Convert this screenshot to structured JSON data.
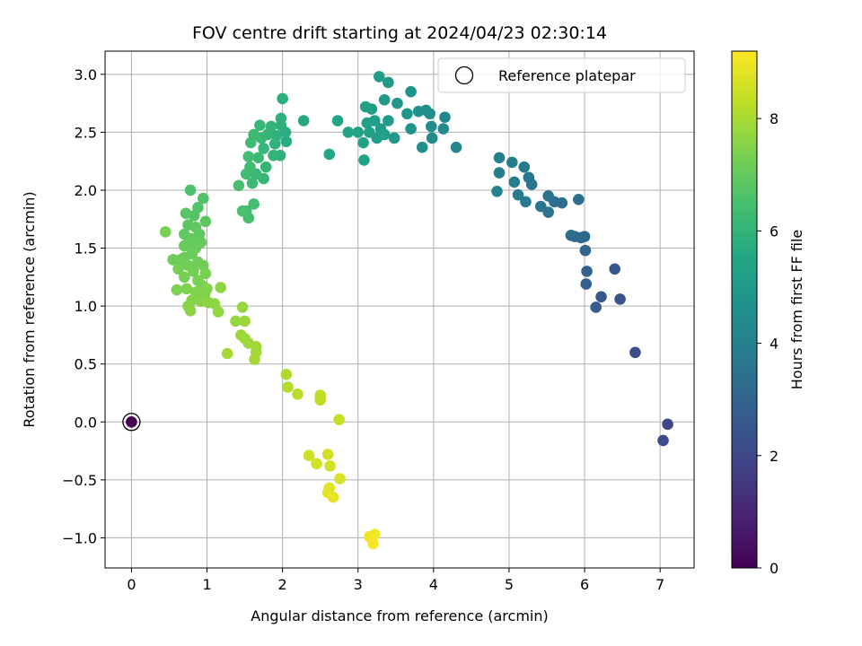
{
  "chart_data": {
    "type": "scatter",
    "title": "FOV centre drift starting at 2024/04/23 02:30:14",
    "xlabel": "Angular distance from reference (arcmin)",
    "ylabel": "Rotation from reference (arcmin)",
    "xlim": [
      -0.35,
      7.45
    ],
    "ylim": [
      -1.26,
      3.2
    ],
    "xticks": [
      0,
      1,
      2,
      3,
      4,
      5,
      6,
      7
    ],
    "yticks": [
      -1.0,
      -0.5,
      0.0,
      0.5,
      1.0,
      1.5,
      2.0,
      2.5,
      3.0
    ],
    "ytick_labels": [
      "−1.0",
      "−0.5",
      "0.0",
      "0.5",
      "1.0",
      "1.5",
      "2.0",
      "2.5",
      "3.0"
    ],
    "grid": true,
    "legend": {
      "placement": "top-right",
      "entries": [
        "Reference platepar"
      ]
    },
    "colorbar": {
      "label": "Hours from first FF file",
      "colormap": "viridis",
      "range": [
        0,
        9.2
      ],
      "ticks": [
        0,
        2,
        4,
        6,
        8
      ]
    },
    "reference_point": {
      "x": 0.0,
      "y": 0.0
    },
    "points": [
      [
        0.0,
        0.0,
        0.0
      ],
      [
        7.1,
        -0.02,
        2.0
      ],
      [
        7.04,
        -0.16,
        2.1
      ],
      [
        6.67,
        0.6,
        2.2
      ],
      [
        6.47,
        1.06,
        2.4
      ],
      [
        6.4,
        1.32,
        2.5
      ],
      [
        6.22,
        1.08,
        2.6
      ],
      [
        6.15,
        0.99,
        2.7
      ],
      [
        6.02,
        1.19,
        2.8
      ],
      [
        6.03,
        1.3,
        2.9
      ],
      [
        6.01,
        1.48,
        3.0
      ],
      [
        6.0,
        1.6,
        3.1
      ],
      [
        5.95,
        1.59,
        3.15
      ],
      [
        5.87,
        1.6,
        3.2
      ],
      [
        5.82,
        1.61,
        3.25
      ],
      [
        5.92,
        1.92,
        3.3
      ],
      [
        5.7,
        1.89,
        3.35
      ],
      [
        5.6,
        1.9,
        3.4
      ],
      [
        5.52,
        1.95,
        3.45
      ],
      [
        5.52,
        1.81,
        3.5
      ],
      [
        5.42,
        1.86,
        3.55
      ],
      [
        5.3,
        2.05,
        3.6
      ],
      [
        5.26,
        2.11,
        3.65
      ],
      [
        5.2,
        2.2,
        3.7
      ],
      [
        5.22,
        1.9,
        3.75
      ],
      [
        5.12,
        1.96,
        3.8
      ],
      [
        5.07,
        2.07,
        3.85
      ],
      [
        5.04,
        2.24,
        3.9
      ],
      [
        4.87,
        2.15,
        3.95
      ],
      [
        4.87,
        2.28,
        4.0
      ],
      [
        4.84,
        1.99,
        4.05
      ],
      [
        4.3,
        2.37,
        4.2
      ],
      [
        4.15,
        2.63,
        4.3
      ],
      [
        4.13,
        2.53,
        4.35
      ],
      [
        3.98,
        2.45,
        4.4
      ],
      [
        3.97,
        2.55,
        4.45
      ],
      [
        3.95,
        2.66,
        4.5
      ],
      [
        3.9,
        2.69,
        4.55
      ],
      [
        3.85,
        2.37,
        4.6
      ],
      [
        3.8,
        2.68,
        4.65
      ],
      [
        3.7,
        2.53,
        4.7
      ],
      [
        3.7,
        2.85,
        4.75
      ],
      [
        3.65,
        2.66,
        4.8
      ],
      [
        3.52,
        2.75,
        4.85
      ],
      [
        3.48,
        2.45,
        4.9
      ],
      [
        3.4,
        2.93,
        4.95
      ],
      [
        3.4,
        2.6,
        5.0
      ],
      [
        3.35,
        2.78,
        5.0
      ],
      [
        3.3,
        2.53,
        5.05
      ],
      [
        3.28,
        2.98,
        5.1
      ],
      [
        3.25,
        2.45,
        5.1
      ],
      [
        3.22,
        2.6,
        5.15
      ],
      [
        3.18,
        2.7,
        5.15
      ],
      [
        3.15,
        2.5,
        5.2
      ],
      [
        3.12,
        2.58,
        5.2
      ],
      [
        3.1,
        2.72,
        5.25
      ],
      [
        3.08,
        2.26,
        5.3
      ],
      [
        3.07,
        2.41,
        5.3
      ],
      [
        3.35,
        2.48,
        5.2
      ],
      [
        3.0,
        2.5,
        5.35
      ],
      [
        2.87,
        2.5,
        5.4
      ],
      [
        2.73,
        2.6,
        5.45
      ],
      [
        2.62,
        2.31,
        5.5
      ],
      [
        2.28,
        2.6,
        5.6
      ],
      [
        2.05,
        2.42,
        5.7
      ],
      [
        2.04,
        2.5,
        5.75
      ],
      [
        2.0,
        2.79,
        5.8
      ],
      [
        1.98,
        2.56,
        5.85
      ],
      [
        1.98,
        2.62,
        5.85
      ],
      [
        1.97,
        2.3,
        5.9
      ],
      [
        1.92,
        2.47,
        5.9
      ],
      [
        1.9,
        2.4,
        5.95
      ],
      [
        1.88,
        2.3,
        6.0
      ],
      [
        1.85,
        2.55,
        6.0
      ],
      [
        1.8,
        2.48,
        6.05
      ],
      [
        1.78,
        2.2,
        6.05
      ],
      [
        1.75,
        2.1,
        6.1
      ],
      [
        1.75,
        2.36,
        6.1
      ],
      [
        1.72,
        2.45,
        6.15
      ],
      [
        1.7,
        2.56,
        6.15
      ],
      [
        1.68,
        2.28,
        6.2
      ],
      [
        1.65,
        2.14,
        6.2
      ],
      [
        1.62,
        2.48,
        6.25
      ],
      [
        1.6,
        2.06,
        6.25
      ],
      [
        1.58,
        2.41,
        6.3
      ],
      [
        1.57,
        2.2,
        6.3
      ],
      [
        1.55,
        2.29,
        6.35
      ],
      [
        1.52,
        2.14,
        6.35
      ],
      [
        1.62,
        1.88,
        6.4
      ],
      [
        1.52,
        1.82,
        6.45
      ],
      [
        1.55,
        1.76,
        6.45
      ],
      [
        1.42,
        2.04,
        6.5
      ],
      [
        1.47,
        1.82,
        6.55
      ],
      [
        0.78,
        2.0,
        6.6
      ],
      [
        0.95,
        1.93,
        6.65
      ],
      [
        0.88,
        1.85,
        6.7
      ],
      [
        0.83,
        1.78,
        6.75
      ],
      [
        0.72,
        1.8,
        6.8
      ],
      [
        0.98,
        1.73,
        6.85
      ],
      [
        0.75,
        1.7,
        6.85
      ],
      [
        0.85,
        1.68,
        6.9
      ],
      [
        0.9,
        1.62,
        6.9
      ],
      [
        0.7,
        1.62,
        6.95
      ],
      [
        0.8,
        1.58,
        7.0
      ],
      [
        0.75,
        1.54,
        7.0
      ],
      [
        0.7,
        1.52,
        7.05
      ],
      [
        0.85,
        1.5,
        7.05
      ],
      [
        0.92,
        1.55,
        7.05
      ],
      [
        0.8,
        1.45,
        7.1
      ],
      [
        0.7,
        1.42,
        7.1
      ],
      [
        0.65,
        1.4,
        7.15
      ],
      [
        0.55,
        1.4,
        7.15
      ],
      [
        0.88,
        1.38,
        7.15
      ],
      [
        0.75,
        1.35,
        7.2
      ],
      [
        0.95,
        1.35,
        7.2
      ],
      [
        0.62,
        1.32,
        7.25
      ],
      [
        0.82,
        1.3,
        7.25
      ],
      [
        0.98,
        1.28,
        7.3
      ],
      [
        0.7,
        1.25,
        7.3
      ],
      [
        0.88,
        1.22,
        7.35
      ],
      [
        0.93,
        1.18,
        7.35
      ],
      [
        0.6,
        1.14,
        7.4
      ],
      [
        0.73,
        1.15,
        7.4
      ],
      [
        0.85,
        1.12,
        7.45
      ],
      [
        0.97,
        1.1,
        7.45
      ],
      [
        0.45,
        1.64,
        7.3
      ],
      [
        1.0,
        1.15,
        7.5
      ],
      [
        0.8,
        1.05,
        7.5
      ],
      [
        0.75,
        1.0,
        7.55
      ],
      [
        0.92,
        1.04,
        7.55
      ],
      [
        1.02,
        1.03,
        7.6
      ],
      [
        0.78,
        0.96,
        7.6
      ],
      [
        1.1,
        1.02,
        7.65
      ],
      [
        1.18,
        1.16,
        7.65
      ],
      [
        1.15,
        0.95,
        7.7
      ],
      [
        1.38,
        0.87,
        7.75
      ],
      [
        1.47,
        0.99,
        7.75
      ],
      [
        1.5,
        0.87,
        7.8
      ],
      [
        1.45,
        0.75,
        7.8
      ],
      [
        1.5,
        0.72,
        7.85
      ],
      [
        1.55,
        0.68,
        7.85
      ],
      [
        1.65,
        0.65,
        7.9
      ],
      [
        1.65,
        0.6,
        7.9
      ],
      [
        1.63,
        0.54,
        7.95
      ],
      [
        1.27,
        0.59,
        7.95
      ],
      [
        2.05,
        0.41,
        8.1
      ],
      [
        2.07,
        0.3,
        8.15
      ],
      [
        2.2,
        0.24,
        8.2
      ],
      [
        2.5,
        0.23,
        8.3
      ],
      [
        2.5,
        0.19,
        8.3
      ],
      [
        2.75,
        0.02,
        8.4
      ],
      [
        2.35,
        -0.29,
        8.5
      ],
      [
        2.45,
        -0.36,
        8.55
      ],
      [
        2.6,
        -0.28,
        8.6
      ],
      [
        2.63,
        -0.38,
        8.6
      ],
      [
        2.76,
        -0.49,
        8.7
      ],
      [
        2.62,
        -0.57,
        8.75
      ],
      [
        2.6,
        -0.61,
        8.8
      ],
      [
        2.67,
        -0.65,
        8.85
      ],
      [
        3.15,
        -0.99,
        9.0
      ],
      [
        3.22,
        -0.97,
        9.05
      ],
      [
        3.2,
        -1.05,
        9.1
      ]
    ]
  }
}
